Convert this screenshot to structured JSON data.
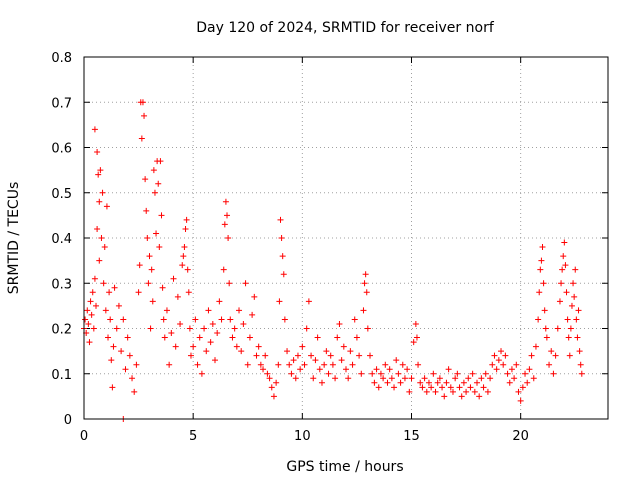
{
  "chart_data": {
    "type": "scatter",
    "title": "Day 120 of 2024, SRMTID for receiver norf",
    "xlabel": "GPS time / hours",
    "ylabel": "SRMTID / TECUs",
    "xlim": [
      0,
      24
    ],
    "ylim": [
      0,
      0.8
    ],
    "xticks": [
      0,
      5,
      10,
      15,
      20
    ],
    "xtick_labels": [
      "0",
      "5",
      "10",
      "15",
      "20"
    ],
    "yticks": [
      0,
      0.1,
      0.2,
      0.3,
      0.4,
      0.5,
      0.6,
      0.7,
      0.8
    ],
    "ytick_labels": [
      "0",
      "0.1",
      "0.2",
      "0.3",
      "0.4",
      "0.5",
      "0.6",
      "0.7",
      "0.8"
    ],
    "grid": true,
    "legend": "none",
    "series": [
      {
        "name": "SRMTID",
        "color": "#ff0000",
        "marker": "plus",
        "points": [
          [
            0.0,
            0.2
          ],
          [
            0.05,
            0.22
          ],
          [
            0.1,
            0.19
          ],
          [
            0.15,
            0.24
          ],
          [
            0.2,
            0.21
          ],
          [
            0.25,
            0.17
          ],
          [
            0.3,
            0.26
          ],
          [
            0.35,
            0.23
          ],
          [
            0.4,
            0.28
          ],
          [
            0.45,
            0.2
          ],
          [
            0.5,
            0.31
          ],
          [
            0.5,
            0.64
          ],
          [
            0.55,
            0.25
          ],
          [
            0.6,
            0.59
          ],
          [
            0.6,
            0.42
          ],
          [
            0.65,
            0.54
          ],
          [
            0.7,
            0.48
          ],
          [
            0.7,
            0.35
          ],
          [
            0.75,
            0.55
          ],
          [
            0.8,
            0.4
          ],
          [
            0.85,
            0.5
          ],
          [
            0.9,
            0.3
          ],
          [
            0.95,
            0.38
          ],
          [
            1.0,
            0.24
          ],
          [
            1.05,
            0.47
          ],
          [
            1.1,
            0.18
          ],
          [
            1.15,
            0.28
          ],
          [
            1.2,
            0.22
          ],
          [
            1.25,
            0.13
          ],
          [
            1.3,
            0.07
          ],
          [
            1.35,
            0.16
          ],
          [
            1.4,
            0.29
          ],
          [
            1.5,
            0.2
          ],
          [
            1.6,
            0.25
          ],
          [
            1.7,
            0.15
          ],
          [
            1.8,
            0.22
          ],
          [
            1.9,
            0.11
          ],
          [
            2.0,
            0.18
          ],
          [
            2.1,
            0.14
          ],
          [
            2.2,
            0.09
          ],
          [
            2.3,
            0.06
          ],
          [
            2.4,
            0.12
          ],
          [
            2.5,
            0.28
          ],
          [
            2.55,
            0.34
          ],
          [
            2.6,
            0.7
          ],
          [
            2.65,
            0.62
          ],
          [
            2.7,
            0.7
          ],
          [
            2.75,
            0.67
          ],
          [
            2.8,
            0.53
          ],
          [
            2.85,
            0.46
          ],
          [
            2.9,
            0.4
          ],
          [
            2.95,
            0.3
          ],
          [
            3.0,
            0.36
          ],
          [
            3.05,
            0.2
          ],
          [
            3.1,
            0.33
          ],
          [
            3.15,
            0.26
          ],
          [
            3.2,
            0.55
          ],
          [
            3.25,
            0.5
          ],
          [
            3.3,
            0.41
          ],
          [
            3.35,
            0.57
          ],
          [
            3.4,
            0.52
          ],
          [
            3.45,
            0.38
          ],
          [
            3.5,
            0.57
          ],
          [
            3.55,
            0.45
          ],
          [
            3.6,
            0.29
          ],
          [
            3.65,
            0.22
          ],
          [
            3.7,
            0.18
          ],
          [
            3.8,
            0.24
          ],
          [
            3.9,
            0.12
          ],
          [
            4.0,
            0.19
          ],
          [
            4.1,
            0.31
          ],
          [
            4.2,
            0.16
          ],
          [
            4.3,
            0.27
          ],
          [
            4.4,
            0.21
          ],
          [
            4.5,
            0.34
          ],
          [
            4.55,
            0.36
          ],
          [
            4.6,
            0.38
          ],
          [
            4.65,
            0.42
          ],
          [
            4.7,
            0.44
          ],
          [
            4.75,
            0.33
          ],
          [
            4.8,
            0.28
          ],
          [
            4.85,
            0.2
          ],
          [
            4.9,
            0.14
          ],
          [
            5.0,
            0.16
          ],
          [
            5.1,
            0.22
          ],
          [
            5.2,
            0.12
          ],
          [
            5.3,
            0.18
          ],
          [
            5.4,
            0.1
          ],
          [
            5.5,
            0.2
          ],
          [
            5.6,
            0.15
          ],
          [
            5.7,
            0.24
          ],
          [
            5.8,
            0.17
          ],
          [
            5.9,
            0.21
          ],
          [
            6.0,
            0.13
          ],
          [
            6.1,
            0.19
          ],
          [
            6.2,
            0.26
          ],
          [
            6.3,
            0.22
          ],
          [
            6.4,
            0.33
          ],
          [
            6.45,
            0.43
          ],
          [
            6.5,
            0.48
          ],
          [
            6.55,
            0.45
          ],
          [
            6.6,
            0.4
          ],
          [
            6.65,
            0.3
          ],
          [
            6.7,
            0.22
          ],
          [
            6.8,
            0.18
          ],
          [
            6.9,
            0.2
          ],
          [
            7.0,
            0.16
          ],
          [
            7.1,
            0.24
          ],
          [
            7.2,
            0.15
          ],
          [
            7.3,
            0.21
          ],
          [
            7.4,
            0.3
          ],
          [
            7.5,
            0.12
          ],
          [
            7.6,
            0.18
          ],
          [
            7.7,
            0.23
          ],
          [
            7.8,
            0.27
          ],
          [
            7.9,
            0.14
          ],
          [
            8.0,
            0.16
          ],
          [
            8.1,
            0.12
          ],
          [
            8.2,
            0.11
          ],
          [
            8.3,
            0.14
          ],
          [
            8.4,
            0.1
          ],
          [
            8.5,
            0.09
          ],
          [
            8.6,
            0.07
          ],
          [
            8.7,
            0.05
          ],
          [
            8.8,
            0.08
          ],
          [
            8.9,
            0.12
          ],
          [
            8.95,
            0.26
          ],
          [
            9.0,
            0.44
          ],
          [
            9.05,
            0.4
          ],
          [
            9.1,
            0.36
          ],
          [
            9.15,
            0.32
          ],
          [
            9.2,
            0.22
          ],
          [
            9.3,
            0.15
          ],
          [
            9.4,
            0.12
          ],
          [
            9.5,
            0.1
          ],
          [
            9.6,
            0.13
          ],
          [
            9.7,
            0.09
          ],
          [
            9.8,
            0.14
          ],
          [
            9.9,
            0.11
          ],
          [
            10.0,
            0.16
          ],
          [
            10.1,
            0.12
          ],
          [
            10.2,
            0.2
          ],
          [
            10.3,
            0.26
          ],
          [
            10.4,
            0.14
          ],
          [
            10.5,
            0.09
          ],
          [
            10.6,
            0.13
          ],
          [
            10.7,
            0.18
          ],
          [
            10.8,
            0.11
          ],
          [
            10.9,
            0.08
          ],
          [
            11.0,
            0.12
          ],
          [
            11.1,
            0.15
          ],
          [
            11.2,
            0.1
          ],
          [
            11.3,
            0.14
          ],
          [
            11.4,
            0.12
          ],
          [
            11.5,
            0.09
          ],
          [
            11.6,
            0.18
          ],
          [
            11.7,
            0.21
          ],
          [
            11.8,
            0.13
          ],
          [
            11.9,
            0.16
          ],
          [
            12.0,
            0.11
          ],
          [
            12.1,
            0.09
          ],
          [
            12.2,
            0.15
          ],
          [
            12.3,
            0.12
          ],
          [
            12.4,
            0.22
          ],
          [
            12.5,
            0.18
          ],
          [
            12.6,
            0.14
          ],
          [
            12.7,
            0.1
          ],
          [
            12.8,
            0.24
          ],
          [
            12.85,
            0.3
          ],
          [
            12.9,
            0.32
          ],
          [
            12.95,
            0.28
          ],
          [
            13.0,
            0.2
          ],
          [
            13.1,
            0.14
          ],
          [
            13.2,
            0.1
          ],
          [
            13.3,
            0.08
          ],
          [
            13.4,
            0.11
          ],
          [
            13.5,
            0.07
          ],
          [
            13.6,
            0.1
          ],
          [
            13.7,
            0.09
          ],
          [
            13.8,
            0.12
          ],
          [
            13.9,
            0.08
          ],
          [
            14.0,
            0.11
          ],
          [
            14.1,
            0.09
          ],
          [
            14.2,
            0.07
          ],
          [
            14.3,
            0.13
          ],
          [
            14.4,
            0.1
          ],
          [
            14.5,
            0.08
          ],
          [
            14.6,
            0.12
          ],
          [
            14.7,
            0.09
          ],
          [
            14.8,
            0.11
          ],
          [
            14.9,
            0.06
          ],
          [
            15.0,
            0.09
          ],
          [
            15.1,
            0.17
          ],
          [
            15.2,
            0.21
          ],
          [
            15.25,
            0.18
          ],
          [
            15.3,
            0.12
          ],
          [
            15.4,
            0.08
          ],
          [
            15.5,
            0.07
          ],
          [
            15.6,
            0.09
          ],
          [
            15.7,
            0.06
          ],
          [
            15.8,
            0.08
          ],
          [
            15.9,
            0.07
          ],
          [
            16.0,
            0.1
          ],
          [
            16.1,
            0.06
          ],
          [
            16.2,
            0.08
          ],
          [
            16.3,
            0.09
          ],
          [
            16.4,
            0.07
          ],
          [
            16.5,
            0.05
          ],
          [
            16.6,
            0.08
          ],
          [
            16.7,
            0.11
          ],
          [
            16.8,
            0.07
          ],
          [
            16.9,
            0.06
          ],
          [
            17.0,
            0.09
          ],
          [
            17.1,
            0.1
          ],
          [
            17.2,
            0.07
          ],
          [
            17.3,
            0.05
          ],
          [
            17.4,
            0.08
          ],
          [
            17.5,
            0.06
          ],
          [
            17.6,
            0.09
          ],
          [
            17.7,
            0.07
          ],
          [
            17.8,
            0.1
          ],
          [
            17.9,
            0.06
          ],
          [
            18.0,
            0.08
          ],
          [
            18.1,
            0.05
          ],
          [
            18.2,
            0.09
          ],
          [
            18.3,
            0.07
          ],
          [
            18.4,
            0.1
          ],
          [
            18.5,
            0.06
          ],
          [
            18.6,
            0.09
          ],
          [
            18.7,
            0.12
          ],
          [
            18.8,
            0.14
          ],
          [
            18.9,
            0.11
          ],
          [
            19.0,
            0.13
          ],
          [
            19.1,
            0.15
          ],
          [
            19.2,
            0.12
          ],
          [
            19.3,
            0.14
          ],
          [
            19.4,
            0.1
          ],
          [
            19.5,
            0.08
          ],
          [
            19.6,
            0.11
          ],
          [
            19.7,
            0.09
          ],
          [
            19.8,
            0.12
          ],
          [
            19.9,
            0.06
          ],
          [
            20.0,
            0.04
          ],
          [
            20.1,
            0.07
          ],
          [
            20.2,
            0.1
          ],
          [
            20.3,
            0.08
          ],
          [
            20.4,
            0.11
          ],
          [
            20.5,
            0.14
          ],
          [
            20.6,
            0.09
          ],
          [
            20.7,
            0.16
          ],
          [
            20.8,
            0.22
          ],
          [
            20.85,
            0.28
          ],
          [
            20.9,
            0.33
          ],
          [
            20.95,
            0.35
          ],
          [
            21.0,
            0.38
          ],
          [
            21.05,
            0.3
          ],
          [
            21.1,
            0.24
          ],
          [
            21.15,
            0.2
          ],
          [
            21.2,
            0.18
          ],
          [
            21.3,
            0.12
          ],
          [
            21.4,
            0.15
          ],
          [
            21.5,
            0.1
          ],
          [
            21.6,
            0.14
          ],
          [
            21.7,
            0.2
          ],
          [
            21.8,
            0.26
          ],
          [
            21.85,
            0.3
          ],
          [
            21.9,
            0.33
          ],
          [
            21.95,
            0.36
          ],
          [
            22.0,
            0.39
          ],
          [
            22.05,
            0.34
          ],
          [
            22.1,
            0.28
          ],
          [
            22.15,
            0.22
          ],
          [
            22.2,
            0.18
          ],
          [
            22.25,
            0.14
          ],
          [
            22.3,
            0.2
          ],
          [
            22.35,
            0.25
          ],
          [
            22.4,
            0.3
          ],
          [
            22.45,
            0.27
          ],
          [
            22.5,
            0.33
          ],
          [
            22.55,
            0.22
          ],
          [
            22.6,
            0.18
          ],
          [
            22.65,
            0.24
          ],
          [
            22.7,
            0.15
          ],
          [
            22.75,
            0.12
          ],
          [
            22.8,
            0.1
          ],
          [
            1.8,
            0.0
          ]
        ]
      }
    ]
  }
}
